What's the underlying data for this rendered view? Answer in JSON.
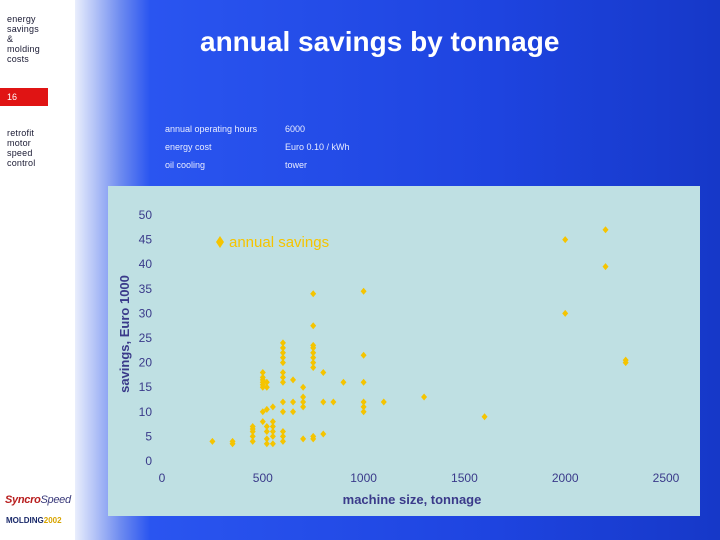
{
  "sidebar": {
    "section_title": "energy\nsavings\n&\nmolding\ncosts",
    "page_number": "16",
    "topic": "retrofit\nmotor\nspeed\ncontrol",
    "logo_syncro": "Syncro",
    "logo_speed": "Speed",
    "logo_molding": "MOLDING",
    "logo_year": "2002"
  },
  "slide": {
    "title": "annual savings by tonnage",
    "parameters": [
      {
        "label": "annual operating hours",
        "value": "6000"
      },
      {
        "label": "energy cost",
        "value": "Euro 0.10 / kWh"
      },
      {
        "label": "oil cooling",
        "value": "tower"
      }
    ]
  },
  "colors": {
    "marker": "#f5c400",
    "panel": "#bfe0e3",
    "background": "#1e44e0",
    "page_badge": "#e01414"
  },
  "chart_data": {
    "type": "scatter",
    "xlabel": "machine size, tonnage",
    "ylabel": "savings, Euro 1000",
    "xlim": [
      0,
      2500
    ],
    "ylim": [
      0,
      50
    ],
    "x_ticks": [
      "0",
      "500",
      "1000",
      "1500",
      "2000",
      "2500"
    ],
    "y_ticks": [
      "0",
      "5",
      "10",
      "15",
      "20",
      "25",
      "30",
      "35",
      "40",
      "45",
      "50"
    ],
    "grid": false,
    "legend_position": "top-center",
    "series": [
      {
        "name": "annual savings",
        "marker": "diamond",
        "points": [
          [
            250,
            4
          ],
          [
            350,
            4
          ],
          [
            350,
            3.5
          ],
          [
            450,
            4
          ],
          [
            450,
            5
          ],
          [
            450,
            6
          ],
          [
            450,
            6.5
          ],
          [
            450,
            7
          ],
          [
            500,
            8
          ],
          [
            500,
            10
          ],
          [
            500,
            15
          ],
          [
            500,
            15.5
          ],
          [
            500,
            16
          ],
          [
            500,
            16.5
          ],
          [
            500,
            17
          ],
          [
            500,
            18
          ],
          [
            520,
            3.5
          ],
          [
            520,
            4.5
          ],
          [
            520,
            6
          ],
          [
            520,
            7
          ],
          [
            520,
            10.5
          ],
          [
            520,
            15
          ],
          [
            520,
            16
          ],
          [
            550,
            3.5
          ],
          [
            550,
            5
          ],
          [
            550,
            6
          ],
          [
            550,
            7
          ],
          [
            550,
            8
          ],
          [
            550,
            11
          ],
          [
            600,
            4
          ],
          [
            600,
            5
          ],
          [
            600,
            6
          ],
          [
            600,
            10
          ],
          [
            600,
            12
          ],
          [
            600,
            16
          ],
          [
            600,
            17
          ],
          [
            600,
            18
          ],
          [
            600,
            20
          ],
          [
            600,
            21
          ],
          [
            600,
            22
          ],
          [
            600,
            23
          ],
          [
            600,
            24
          ],
          [
            650,
            10
          ],
          [
            650,
            12
          ],
          [
            650,
            16.5
          ],
          [
            700,
            11
          ],
          [
            700,
            12
          ],
          [
            700,
            13
          ],
          [
            700,
            15
          ],
          [
            700,
            4.5
          ],
          [
            750,
            5
          ],
          [
            750,
            19
          ],
          [
            750,
            20
          ],
          [
            750,
            21
          ],
          [
            750,
            22
          ],
          [
            750,
            23
          ],
          [
            750,
            23.5
          ],
          [
            750,
            27.5
          ],
          [
            750,
            34
          ],
          [
            750,
            4.5
          ],
          [
            800,
            5.5
          ],
          [
            800,
            12
          ],
          [
            800,
            18
          ],
          [
            850,
            12
          ],
          [
            900,
            16
          ],
          [
            1000,
            10
          ],
          [
            1000,
            11
          ],
          [
            1000,
            12
          ],
          [
            1000,
            16
          ],
          [
            1000,
            21.5
          ],
          [
            1000,
            34.5
          ],
          [
            1100,
            12
          ],
          [
            1300,
            13
          ],
          [
            1600,
            9
          ],
          [
            2000,
            30
          ],
          [
            2000,
            45
          ],
          [
            2200,
            39.5
          ],
          [
            2200,
            47
          ],
          [
            2300,
            20
          ],
          [
            2300,
            20.5
          ]
        ]
      }
    ]
  }
}
